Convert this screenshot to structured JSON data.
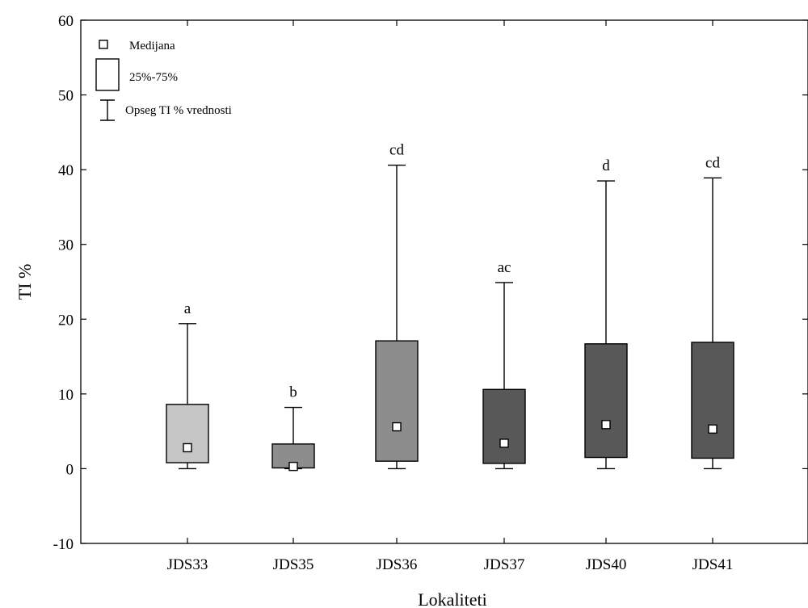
{
  "chart_data": {
    "type": "box",
    "xlabel": "Lokaliteti",
    "ylabel": "TI %",
    "ylim": [
      -10,
      60
    ],
    "y_ticks": [
      -10,
      0,
      10,
      20,
      30,
      40,
      50,
      60
    ],
    "categories": [
      "JDS33",
      "JDS35",
      "JDS36",
      "JDS37",
      "JDS40",
      "JDS41"
    ],
    "boxes": [
      {
        "category": "JDS33",
        "min": 0,
        "q1": 0.8,
        "median": 2.8,
        "q3": 8.6,
        "max": 19.4,
        "group": "a",
        "color": "#c6c6c6"
      },
      {
        "category": "JDS35",
        "min": 0,
        "q1": 0.1,
        "median": 0.3,
        "q3": 3.3,
        "max": 8.2,
        "group": "b",
        "color": "#8d8d8d"
      },
      {
        "category": "JDS36",
        "min": 0,
        "q1": 1.0,
        "median": 5.6,
        "q3": 17.1,
        "max": 40.6,
        "group": "cd",
        "color": "#8d8d8d"
      },
      {
        "category": "JDS37",
        "min": 0,
        "q1": 0.7,
        "median": 3.4,
        "q3": 10.6,
        "max": 24.9,
        "group": "ac",
        "color": "#585858"
      },
      {
        "category": "JDS40",
        "min": 0,
        "q1": 1.5,
        "median": 5.9,
        "q3": 16.7,
        "max": 38.5,
        "group": "d",
        "color": "#585858"
      },
      {
        "category": "JDS41",
        "min": 0,
        "q1": 1.4,
        "median": 5.3,
        "q3": 16.9,
        "max": 38.9,
        "group": "cd",
        "color": "#585858"
      }
    ],
    "legend": {
      "position": "top-left",
      "entries": [
        {
          "symbol": "median-square",
          "label": "Medijana"
        },
        {
          "symbol": "box",
          "label": "25%-75%"
        },
        {
          "symbol": "whisker",
          "label": "Opseg TI % vrednosti"
        }
      ]
    }
  }
}
